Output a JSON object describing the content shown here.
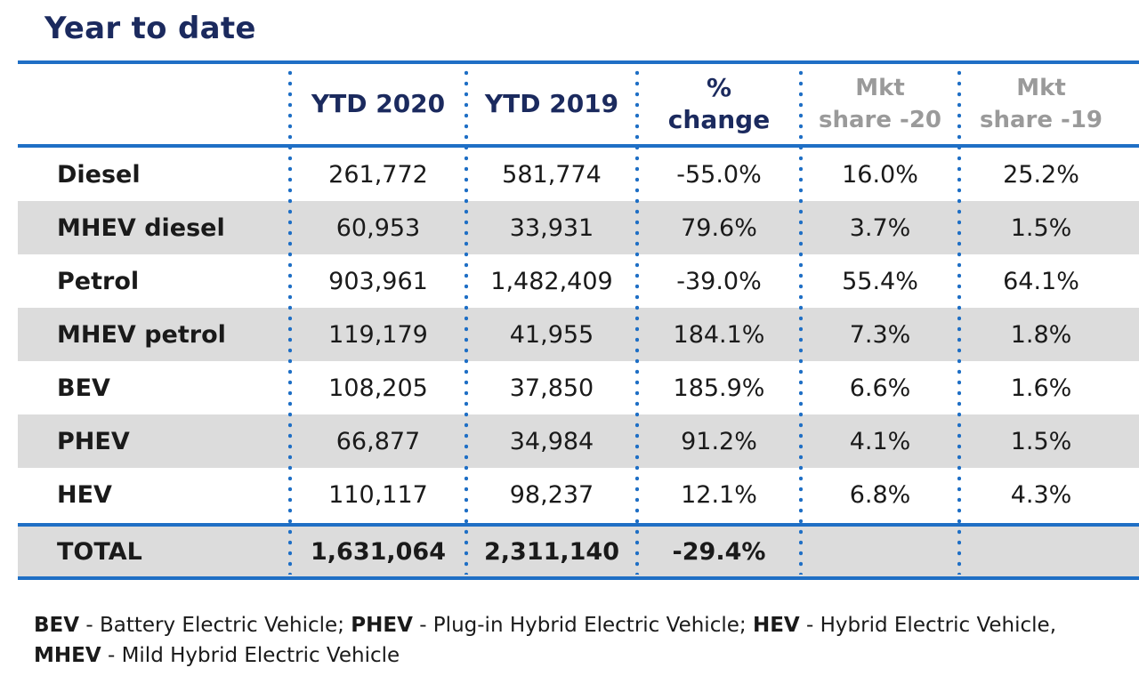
{
  "title": "Year to date",
  "columns": {
    "c1": "YTD 2020",
    "c2": "YTD 2019",
    "c3_line1": "%",
    "c3_line2": "change",
    "c4_line1": "Mkt",
    "c4_line2": "share -20",
    "c5_line1": "Mkt",
    "c5_line2": "share -19"
  },
  "rows": [
    {
      "label": "Diesel",
      "ytd2020": "261,772",
      "ytd2019": "581,774",
      "change": "-55.0%",
      "share20": "16.0%",
      "share19": "25.2%"
    },
    {
      "label": "MHEV diesel",
      "ytd2020": "60,953",
      "ytd2019": "33,931",
      "change": "79.6%",
      "share20": "3.7%",
      "share19": "1.5%"
    },
    {
      "label": "Petrol",
      "ytd2020": "903,961",
      "ytd2019": "1,482,409",
      "change": "-39.0%",
      "share20": "55.4%",
      "share19": "64.1%"
    },
    {
      "label": "MHEV petrol",
      "ytd2020": "119,179",
      "ytd2019": "41,955",
      "change": "184.1%",
      "share20": "7.3%",
      "share19": "1.8%"
    },
    {
      "label": "BEV",
      "ytd2020": "108,205",
      "ytd2019": "37,850",
      "change": "185.9%",
      "share20": "6.6%",
      "share19": "1.6%"
    },
    {
      "label": "PHEV",
      "ytd2020": "66,877",
      "ytd2019": "34,984",
      "change": "91.2%",
      "share20": "4.1%",
      "share19": "1.5%"
    },
    {
      "label": "HEV",
      "ytd2020": "110,117",
      "ytd2019": "98,237",
      "change": "12.1%",
      "share20": "6.8%",
      "share19": "4.3%"
    }
  ],
  "total": {
    "label": "TOTAL",
    "ytd2020": "1,631,064",
    "ytd2019": "2,311,140",
    "change": "-29.4%",
    "share20": "",
    "share19": ""
  },
  "legend": {
    "bev_abbr": "BEV",
    "bev_text": " - Battery Electric Vehicle; ",
    "phev_abbr": "PHEV",
    "phev_text": " - Plug-in Hybrid Electric Vehicle; ",
    "hev_abbr": "HEV",
    "hev_text": " - Hybrid Electric Vehicle,",
    "mhev_abbr": "MHEV",
    "mhev_text": " - Mild Hybrid Electric Vehicle"
  },
  "colors": {
    "accent": "#1f6fc5",
    "title": "#1b2a5e",
    "shade": "#dcdcdc",
    "muted_header": "#9a9a9a"
  },
  "chart_data": {
    "type": "table",
    "title": "Year to date",
    "columns": [
      "",
      "YTD 2020",
      "YTD 2019",
      "% change",
      "Mkt share -20",
      "Mkt share -19"
    ],
    "rows": [
      [
        "Diesel",
        261772,
        581774,
        -55.0,
        16.0,
        25.2
      ],
      [
        "MHEV diesel",
        60953,
        33931,
        79.6,
        3.7,
        1.5
      ],
      [
        "Petrol",
        903961,
        1482409,
        -39.0,
        55.4,
        64.1
      ],
      [
        "MHEV petrol",
        119179,
        41955,
        184.1,
        7.3,
        1.8
      ],
      [
        "BEV",
        108205,
        37850,
        185.9,
        6.6,
        1.6
      ],
      [
        "PHEV",
        66877,
        34984,
        91.2,
        4.1,
        1.5
      ],
      [
        "HEV",
        110117,
        98237,
        12.1,
        6.8,
        4.3
      ],
      [
        "TOTAL",
        1631064,
        2311140,
        -29.4,
        null,
        null
      ]
    ]
  }
}
